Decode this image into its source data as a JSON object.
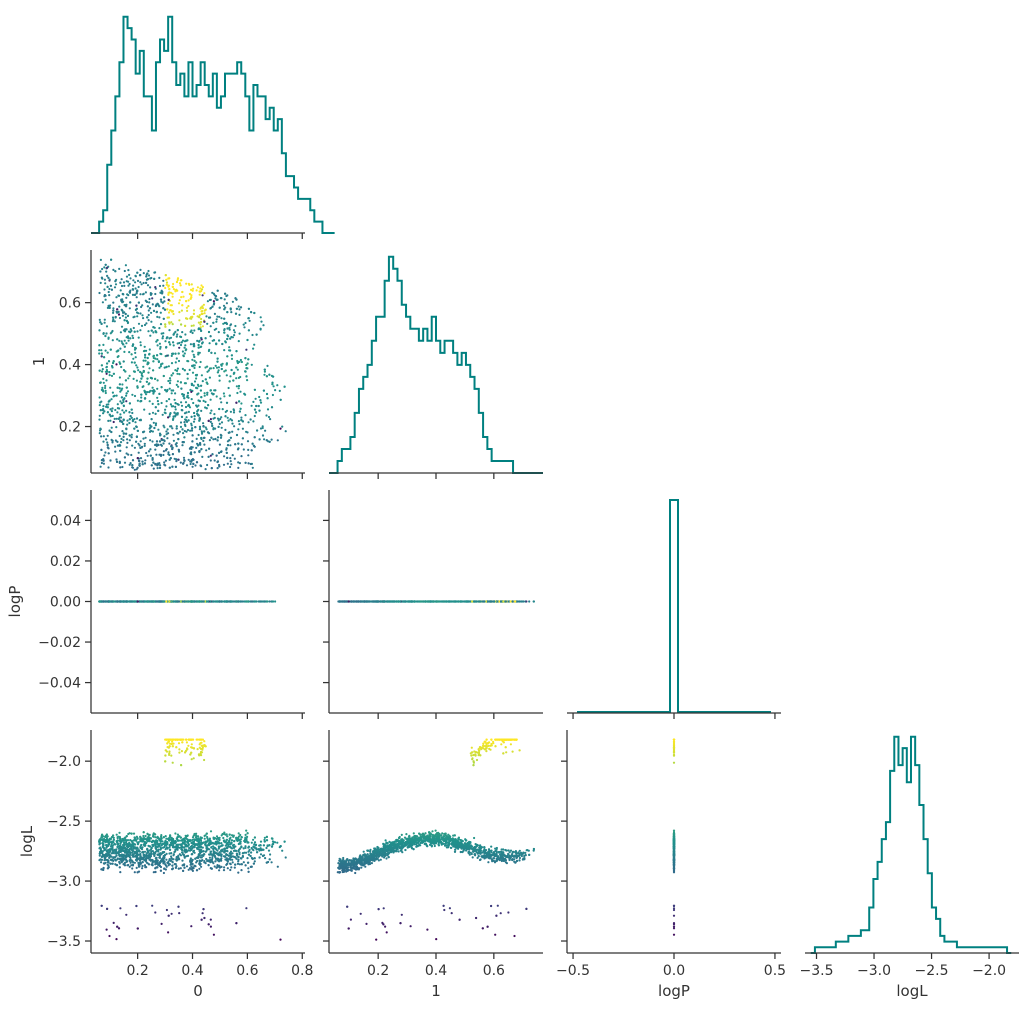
{
  "figure": {
    "type": "corner-plot",
    "variables": [
      "0",
      "1",
      "logP",
      "logL"
    ]
  },
  "colors": {
    "histogram": "#008080",
    "axis": "#333333",
    "scatter_colormap": [
      "#440154",
      "#3b528b",
      "#21918c",
      "#5ec962",
      "#fde725"
    ]
  },
  "chart_data": [
    {
      "id": "hist-0",
      "type": "histogram",
      "variable": "0",
      "xlim": [
        0.03,
        0.81
      ],
      "x_ticks": [
        0.2,
        0.4,
        0.6,
        0.8
      ],
      "bin_start": 0.03,
      "bin_width": 0.0148,
      "counts": [
        0,
        0,
        1,
        2,
        6,
        9,
        12,
        15,
        19,
        18,
        17,
        14,
        16,
        12,
        12,
        9,
        15,
        17,
        16,
        19,
        15,
        13,
        14,
        12,
        15,
        12,
        13,
        15,
        13,
        12,
        14,
        11,
        12,
        14,
        14,
        14,
        15,
        14,
        12,
        9,
        13,
        12,
        12,
        10,
        11,
        9,
        10,
        7,
        5,
        5,
        4,
        3,
        3,
        3,
        2,
        1,
        1,
        0,
        0,
        0
      ]
    },
    {
      "id": "scatter-0-1",
      "type": "scatter",
      "x_var": "0",
      "y_var": "1",
      "xlim": [
        0.03,
        0.81
      ],
      "ylim": [
        0.05,
        0.77
      ],
      "y_ticks": [
        0.2,
        0.4,
        0.6
      ],
      "ylabel": "1"
    },
    {
      "id": "hist-1",
      "type": "histogram",
      "variable": "1",
      "xlim": [
        0.03,
        0.77
      ],
      "bin_start": 0.03,
      "bin_width": 0.0148,
      "counts": [
        0,
        0,
        1,
        2,
        2,
        3,
        5,
        7,
        8,
        9,
        11,
        13,
        13,
        16,
        18,
        17,
        16,
        14,
        13,
        12,
        12,
        11,
        12,
        11,
        13,
        11,
        10,
        11,
        11,
        10,
        9,
        10,
        9,
        8,
        7,
        5,
        3,
        2,
        1,
        1,
        1,
        1,
        1,
        0,
        0,
        0,
        0,
        0,
        0,
        0
      ]
    },
    {
      "id": "scatter-0-logP",
      "type": "scatter",
      "x_var": "0",
      "y_var": "logP",
      "xlim": [
        0.03,
        0.81
      ],
      "ylim": [
        -0.055,
        0.055
      ],
      "y_ticks": [
        -0.04,
        -0.02,
        0.0,
        0.02,
        0.04
      ],
      "y_tick_labels": [
        "−0.04",
        "−0.02",
        "0.00",
        "0.02",
        "0.04"
      ],
      "ylabel": "logP",
      "y_value": 0.0,
      "x_range": [
        0.05,
        0.79
      ]
    },
    {
      "id": "scatter-1-logP",
      "type": "scatter",
      "x_var": "1",
      "y_var": "logP",
      "xlim": [
        0.03,
        0.77
      ],
      "ylim": [
        -0.055,
        0.055
      ],
      "y_value": 0.0,
      "x_range": [
        0.05,
        0.76
      ]
    },
    {
      "id": "hist-logP",
      "type": "histogram",
      "variable": "logP",
      "xlim": [
        -0.53,
        0.53
      ],
      "spike_at": 0.0,
      "spike_count": 1
    },
    {
      "id": "scatter-0-logL",
      "type": "scatter",
      "x_var": "0",
      "y_var": "logL",
      "xlim": [
        0.03,
        0.81
      ],
      "ylim": [
        -3.6,
        -1.74
      ],
      "x_ticks": [
        0.2,
        0.4,
        0.6,
        0.8
      ],
      "x_tick_labels": [
        "0.2",
        "0.4",
        "0.6",
        "0.8"
      ],
      "y_ticks": [
        -3.5,
        -3.0,
        -2.5,
        -2.0
      ],
      "y_tick_labels": [
        "−3.5",
        "−3.0",
        "−2.5",
        "−2.0"
      ],
      "xlabel": "0",
      "ylabel": "logL"
    },
    {
      "id": "scatter-1-logL",
      "type": "scatter",
      "x_var": "1",
      "y_var": "logL",
      "xlim": [
        0.03,
        0.77
      ],
      "ylim": [
        -3.6,
        -1.74
      ],
      "x_ticks": [
        0.2,
        0.4,
        0.6
      ],
      "x_tick_labels": [
        "0.2",
        "0.4",
        "0.6"
      ],
      "xlabel": "1"
    },
    {
      "id": "scatter-logP-logL",
      "type": "scatter",
      "x_var": "logP",
      "y_var": "logL",
      "xlim": [
        -0.53,
        0.53
      ],
      "ylim": [
        -3.6,
        -1.74
      ],
      "x_ticks": [
        -0.5,
        0.0,
        0.5
      ],
      "x_tick_labels": [
        "−0.5",
        "0.0",
        "0.5"
      ],
      "xlabel": "logP",
      "x_value": 0.0,
      "y_range": [
        -3.52,
        -1.82
      ]
    },
    {
      "id": "hist-logL",
      "type": "histogram",
      "variable": "logL",
      "xlim": [
        -3.6,
        -1.74
      ],
      "x_ticks": [
        -3.5,
        -3.0,
        -2.5,
        -2.0
      ],
      "x_tick_labels": [
        "−3.5",
        "−3.0",
        "−2.5",
        "−2.0"
      ],
      "xlabel": "logL",
      "bin_start": -3.55,
      "bin_width": 0.0363,
      "counts": [
        0,
        1,
        1,
        1,
        1,
        1,
        2,
        2,
        2,
        3,
        3,
        3,
        4,
        4,
        8,
        13,
        16,
        20,
        23,
        32,
        38,
        33,
        36,
        30,
        38,
        33,
        26,
        20,
        14,
        8,
        6,
        3,
        2,
        2,
        2,
        1,
        1,
        1,
        1,
        1,
        1,
        1,
        1,
        1,
        1,
        1,
        1,
        0
      ]
    }
  ]
}
